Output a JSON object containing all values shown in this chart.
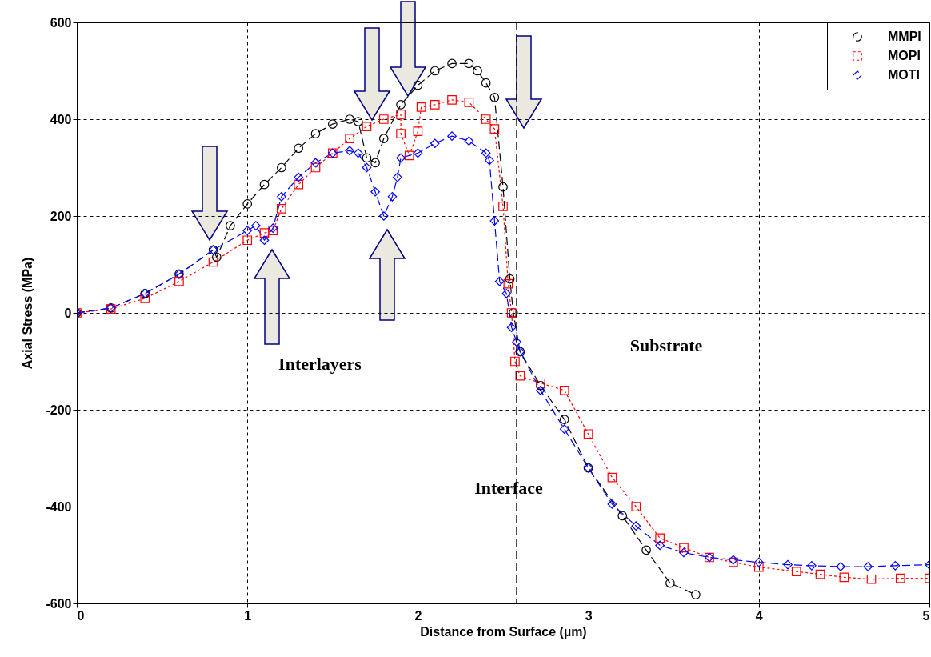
{
  "chart_data": {
    "type": "line",
    "xlabel": "Distance from Surface (µm)",
    "ylabel": "Axial Stress (MPa)",
    "xlim": [
      0,
      5
    ],
    "xticks": [
      0,
      1,
      2,
      3,
      4,
      5
    ],
    "ylim": [
      -600,
      600
    ],
    "yticks": [
      -600,
      -400,
      -200,
      0,
      200,
      400,
      600
    ],
    "grid": true,
    "legend": "top right",
    "series": [
      {
        "name": "MMPI",
        "color": "#000000",
        "marker": "circle",
        "line_style": "dashed",
        "x": [
          0,
          0.2,
          0.4,
          0.6,
          0.8,
          0.82,
          0.9,
          1.0,
          1.1,
          1.2,
          1.3,
          1.4,
          1.5,
          1.6,
          1.65,
          1.7,
          1.75,
          1.8,
          1.9,
          2.0,
          2.1,
          2.2,
          2.3,
          2.35,
          2.4,
          2.45,
          2.5,
          2.54,
          2.56,
          2.6,
          2.72,
          2.86,
          3.0,
          3.2,
          3.34,
          3.48,
          3.63
        ],
        "values": [
          0,
          10,
          40,
          80,
          130,
          115,
          180,
          225,
          265,
          300,
          340,
          370,
          390,
          400,
          395,
          320,
          310,
          360,
          430,
          470,
          500,
          515,
          515,
          500,
          475,
          445,
          260,
          70,
          0,
          -80,
          -150,
          -220,
          -320,
          -419,
          -490,
          -558,
          -582
        ]
      },
      {
        "name": "MOPI",
        "color": "#ff0000",
        "marker": "square",
        "line_style": "dotted",
        "x": [
          0,
          0.2,
          0.4,
          0.6,
          0.8,
          1.0,
          1.1,
          1.15,
          1.2,
          1.3,
          1.4,
          1.5,
          1.6,
          1.7,
          1.8,
          1.9,
          1.9,
          1.95,
          2.0,
          2.02,
          2.1,
          2.2,
          2.3,
          2.4,
          2.45,
          2.5,
          2.53,
          2.55,
          2.57,
          2.6,
          2.72,
          2.86,
          3.0,
          3.14,
          3.28,
          3.42,
          3.56,
          3.71,
          3.85,
          4.0,
          4.22,
          4.36,
          4.5,
          4.66,
          4.83,
          5.0
        ],
        "values": [
          0,
          8,
          30,
          65,
          105,
          150,
          165,
          170,
          215,
          265,
          300,
          330,
          360,
          385,
          400,
          410,
          370,
          325,
          375,
          425,
          430,
          440,
          435,
          400,
          380,
          220,
          60,
          0,
          -100,
          -130,
          -145,
          -160,
          -250,
          -340,
          -400,
          -465,
          -485,
          -505,
          -515,
          -525,
          -534,
          -540,
          -546,
          -550,
          -548,
          -548
        ]
      },
      {
        "name": "MOTI",
        "color": "#0000ff",
        "marker": "diamond",
        "line_style": "dashed",
        "x": [
          0,
          0.2,
          0.4,
          0.6,
          0.8,
          1.0,
          1.05,
          1.1,
          1.15,
          1.2,
          1.3,
          1.4,
          1.5,
          1.6,
          1.65,
          1.7,
          1.75,
          1.8,
          1.85,
          1.88,
          1.9,
          2.0,
          2.1,
          2.2,
          2.3,
          2.4,
          2.42,
          2.45,
          2.48,
          2.52,
          2.55,
          2.58,
          2.6,
          2.72,
          2.86,
          3.0,
          3.14,
          3.28,
          3.42,
          3.56,
          3.71,
          3.85,
          4.0,
          4.17,
          4.31,
          4.48,
          4.64,
          4.8,
          5.0
        ],
        "values": [
          0,
          10,
          40,
          80,
          130,
          170,
          180,
          150,
          175,
          240,
          280,
          310,
          330,
          335,
          330,
          300,
          250,
          200,
          240,
          280,
          320,
          330,
          350,
          365,
          355,
          330,
          315,
          190,
          65,
          40,
          -30,
          -60,
          -80,
          -160,
          -240,
          -320,
          -395,
          -440,
          -480,
          -495,
          -505,
          -510,
          -515,
          -520,
          -522,
          -524,
          -524,
          -522,
          -520
        ]
      }
    ],
    "ref_lines": [
      {
        "axis": "x",
        "value": 2.58,
        "color": "#000000",
        "line_style": "dashed"
      }
    ],
    "annotations": [
      "Interlayers",
      "Substrate",
      "Interface"
    ]
  }
}
